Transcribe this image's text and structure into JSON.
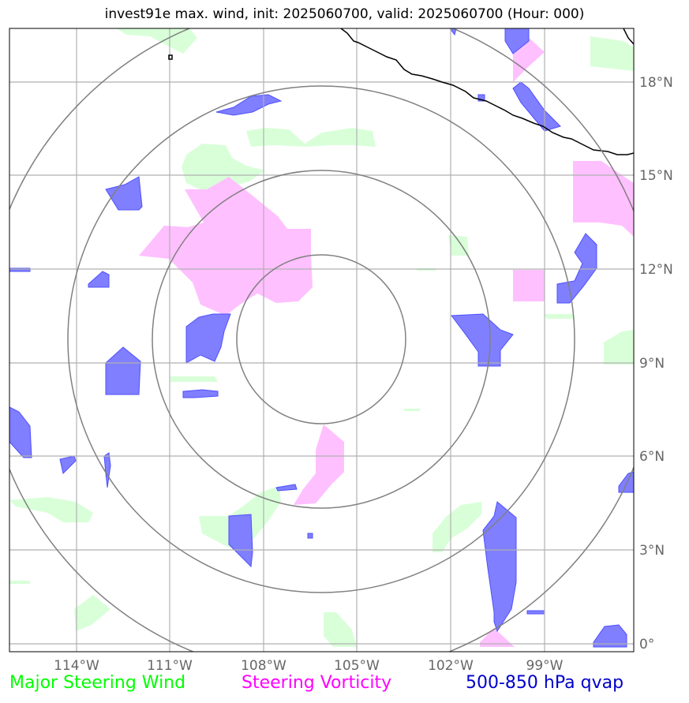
{
  "title": "invest91e max. wind, init: 2025060700, valid: 2025060700 (Hour: 000)",
  "axes": {
    "lon_labels": [
      "114°W",
      "111°W",
      "108°W",
      "105°W",
      "102°W",
      "99°W"
    ],
    "lat_labels": [
      "18°N",
      "15°N",
      "12°N",
      "9°N",
      "6°N",
      "3°N",
      "0°"
    ]
  },
  "legend": {
    "wind": "Major Steering Wind",
    "vorticity": "Steering Vorticity",
    "qvap": "500-850 hPa qvap"
  },
  "colors": {
    "wind": "#00ff00",
    "vorticity": "#ff00ff",
    "qvap": "#0000cc",
    "wind_fill": "#d9ffd9",
    "vorticity_fill": "#ffc0ff",
    "qvap_fill": "#7f7fff",
    "rings": "#808080",
    "grid": "#b0b0b0",
    "coast": "#000000"
  },
  "storm": {
    "name": "invest91e",
    "center_lon": -106.3,
    "center_lat": 9.7,
    "ring_radii_deg": [
      2.7,
      5.4,
      8.1,
      10.8
    ]
  },
  "map_extent": {
    "lon_min": -116.2,
    "lon_max": -96.2,
    "lat_min": -0.2,
    "lat_max": 19.7
  }
}
